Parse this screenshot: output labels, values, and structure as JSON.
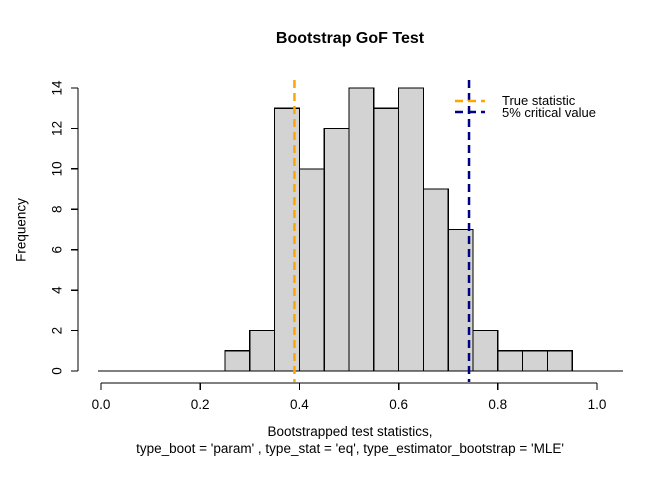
{
  "title": "Bootstrap GoF Test",
  "ylabel": "Frequency",
  "xlabel_line1": "Bootstrapped test statistics,",
  "xlabel_line2": "type_boot = 'param' , type_stat = 'eq', type_estimator_bootstrap = 'MLE'",
  "legend": {
    "items": [
      {
        "label": "True statistic",
        "color": "#FFA500"
      },
      {
        "label": "5% critical value",
        "color": "#000080"
      }
    ]
  },
  "chart_data": {
    "type": "bar",
    "subtype": "histogram",
    "bin_width": 0.05,
    "bin_starts": [
      0.25,
      0.3,
      0.35,
      0.4,
      0.45,
      0.5,
      0.55,
      0.6,
      0.65,
      0.7,
      0.75,
      0.8,
      0.85,
      0.9
    ],
    "values": [
      1,
      2,
      13,
      10,
      12,
      14,
      13,
      14,
      9,
      7,
      2,
      1,
      1,
      1
    ],
    "title": "Bootstrap GoF Test",
    "xlabel": "Bootstrapped test statistics, type_boot = 'param' , type_stat = 'eq', type_estimator_bootstrap = 'MLE'",
    "ylabel": "Frequency",
    "xlim": [
      0.0,
      1.05
    ],
    "ylim": [
      0,
      14
    ],
    "x_ticks": {
      "values": [
        0.0,
        0.2,
        0.4,
        0.6,
        0.8,
        1.0
      ],
      "labels": [
        "0.0",
        "0.2",
        "0.4",
        "0.6",
        "0.8",
        "1.0"
      ]
    },
    "y_ticks": {
      "values": [
        0,
        2,
        4,
        6,
        8,
        10,
        12,
        14
      ],
      "labels": [
        "0",
        "2",
        "4",
        "6",
        "8",
        "10",
        "12",
        "14"
      ]
    },
    "vlines": [
      {
        "name": "true-statistic",
        "x": 0.39,
        "color": "#FFA500",
        "style": "dashed"
      },
      {
        "name": "critical-value-5pct",
        "x": 0.742,
        "color": "#000080",
        "style": "dashed"
      }
    ],
    "bar_fill": "#D3D3D3",
    "bar_border": "#000000",
    "axis_color": "#000000",
    "grid": false,
    "legend_position": "top-right"
  }
}
